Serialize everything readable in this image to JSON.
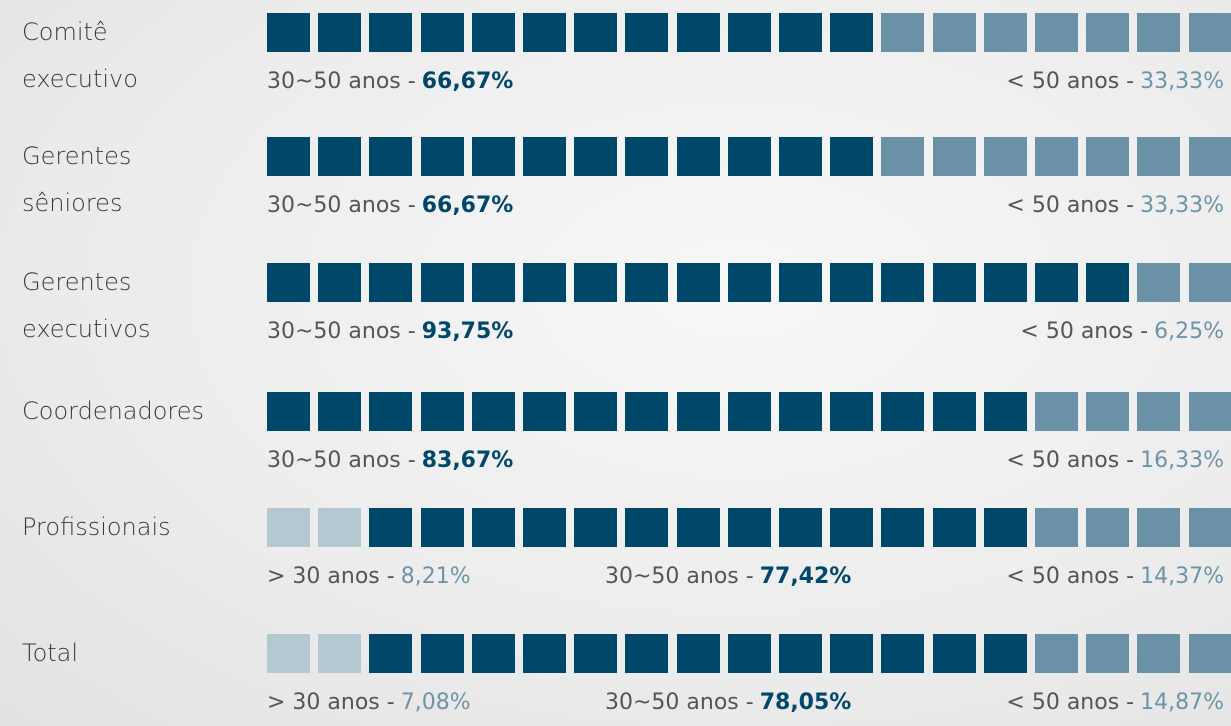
{
  "rows": [
    {
      "label": [
        "Comitê",
        "executivo"
      ],
      "segments": [
        {
          "name": "30~50 anos -",
          "value": "66,67%",
          "squares": 12,
          "color": "#00486a"
        },
        {
          "name": "< 50 anos -",
          "value": "33,33%",
          "squares": 7,
          "color": "#6a91a6"
        }
      ]
    },
    {
      "label": [
        "Gerentes",
        "sêniores"
      ],
      "segments": [
        {
          "name": "30~50 anos -",
          "value": "66,67%",
          "squares": 12,
          "color": "#00486a"
        },
        {
          "name": "< 50 anos -",
          "value": "33,33%",
          "squares": 7,
          "color": "#6a91a6"
        }
      ]
    },
    {
      "label": [
        "Gerentes",
        "executivos"
      ],
      "segments": [
        {
          "name": "30~50 anos -",
          "value": "93,75%",
          "squares": 17,
          "color": "#00486a"
        },
        {
          "name": "< 50 anos -",
          "value": "6,25%",
          "squares": 2,
          "color": "#6a91a6"
        }
      ]
    },
    {
      "label": [
        "Coordenadores"
      ],
      "segments": [
        {
          "name": "30~50 anos -",
          "value": "83,67%",
          "squares": 15,
          "color": "#00486a"
        },
        {
          "name": "< 50 anos -",
          "value": "16,33%",
          "squares": 4,
          "color": "#6a91a6"
        }
      ]
    },
    {
      "label": [
        "Profissionais"
      ],
      "segments": [
        {
          "name": "> 30 anos -",
          "value": "8,21%",
          "squares": 2,
          "color": "#b4c8d2"
        },
        {
          "name": "30~50 anos -",
          "value": "77,42%",
          "squares": 13,
          "color": "#00486a"
        },
        {
          "name": "< 50 anos -",
          "value": "14,37%",
          "squares": 4,
          "color": "#6a91a6"
        }
      ]
    },
    {
      "label": [
        "Total"
      ],
      "segments": [
        {
          "name": "> 30 anos -",
          "value": "7,08%",
          "squares": 2,
          "color": "#b4c8d2"
        },
        {
          "name": "30~50 anos -",
          "value": "78,05%",
          "squares": 13,
          "color": "#00486a"
        },
        {
          "name": "< 50 anos -",
          "value": "14,87%",
          "squares": 4,
          "color": "#6a91a6"
        }
      ]
    }
  ]
}
